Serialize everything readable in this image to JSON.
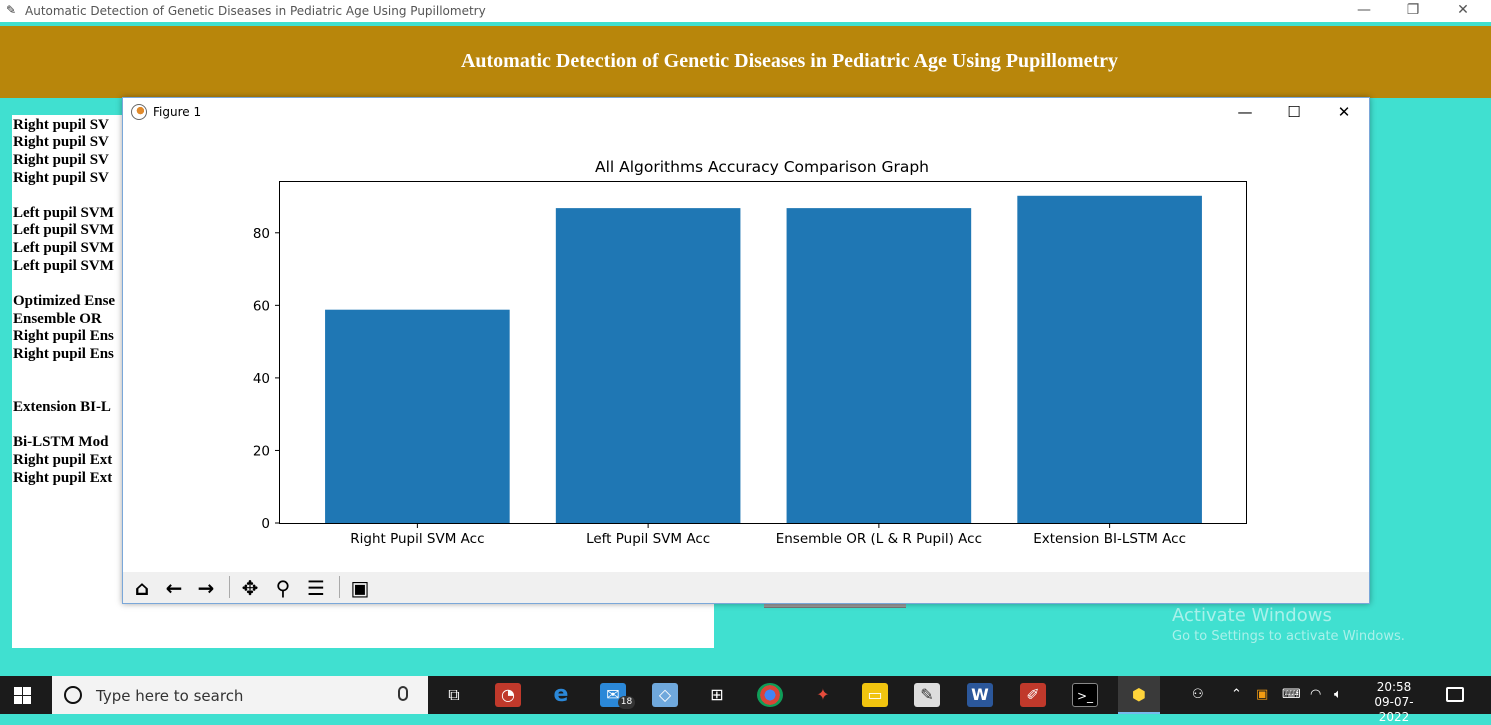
{
  "app": {
    "window_title": "Automatic Detection of Genetic Diseases in Pediatric Age Using Pupillometry",
    "heading": "Automatic Detection of Genetic Diseases in Pediatric Age Using Pupillometry"
  },
  "output_lines": [
    "Right pupil SV",
    "Right pupil SV",
    "Right pupil SV",
    "Right pupil SV",
    "Left pupil SVM",
    "Left pupil SVM",
    "Left pupil SVM",
    "Left pupil SVM",
    "Optimized Ense",
    "Ensemble OR",
    "Right pupil Ens",
    "Right pupil Ens",
    "Extension BI-L",
    "Bi-LSTM Mod",
    "Right pupil Ext",
    "Right pupil Ext"
  ],
  "watermark": {
    "title": "Activate Windows",
    "subtitle": "Go to Settings to activate Windows."
  },
  "figure": {
    "title": "Figure 1"
  },
  "chart_data": {
    "type": "bar",
    "title": "All Algorithms Accuracy Comparison Graph",
    "categories": [
      "Right Pupil SVM Acc",
      "Left Pupil SVM Acc",
      "Ensemble OR (L & R Pupil) Acc",
      "Extension BI-LSTM Acc"
    ],
    "values": [
      58.8,
      86.8,
      86.8,
      90.2
    ],
    "xlabel": "",
    "ylabel": "",
    "ylim": [
      0,
      94
    ],
    "yticks": [
      0,
      20,
      40,
      60,
      80
    ],
    "bar_color": "#1f77b4",
    "grid": false
  },
  "taskbar": {
    "search_placeholder": "Type here to search",
    "mail_badge": "18",
    "time": "20:58",
    "date": "09-07-2022"
  }
}
